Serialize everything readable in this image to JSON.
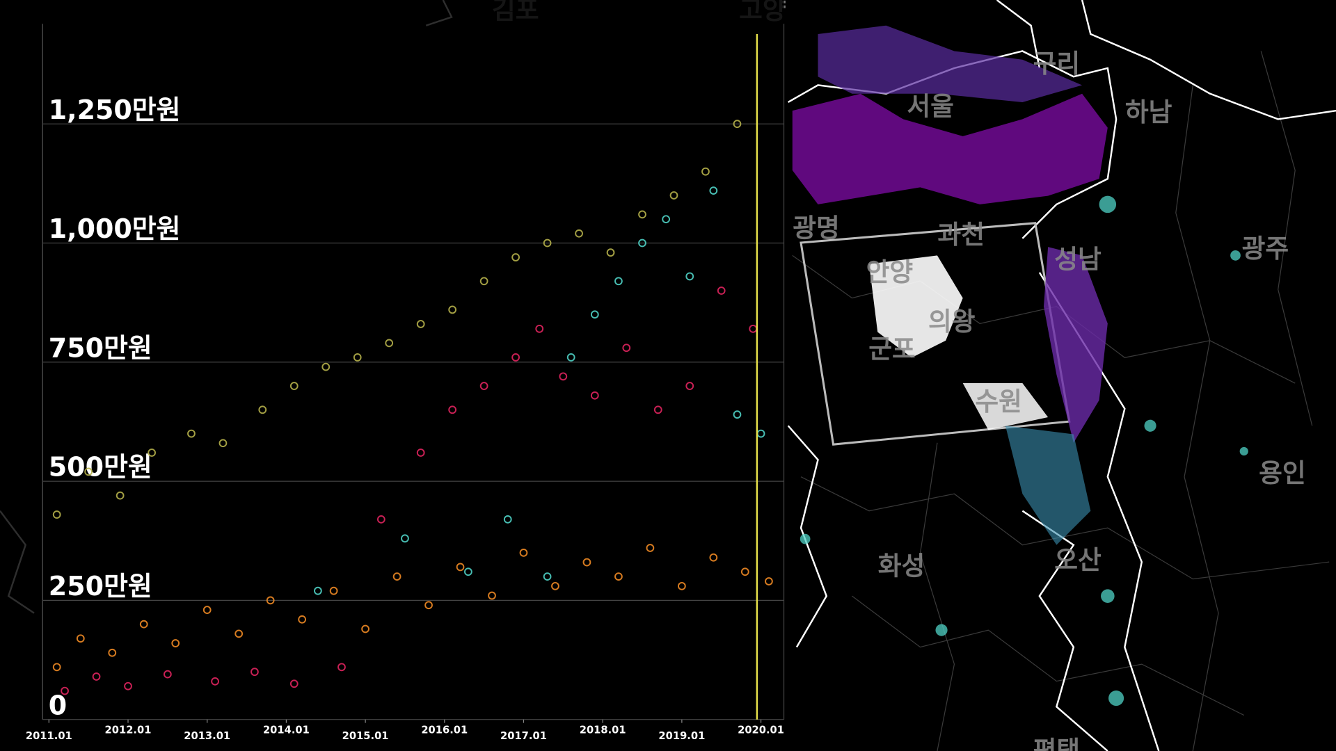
{
  "chart_data": {
    "type": "scatter",
    "xlim": [
      2010.92,
      2020.29
    ],
    "ylim": [
      0,
      1460
    ],
    "xticks": [
      {
        "value": 2011,
        "label": "2011.01"
      },
      {
        "value": 2012,
        "label": "2012.01"
      },
      {
        "value": 2013,
        "label": "2013.01"
      },
      {
        "value": 2014,
        "label": "2014.01"
      },
      {
        "value": 2015,
        "label": "2015.01"
      },
      {
        "value": 2016,
        "label": "2016.01"
      },
      {
        "value": 2017,
        "label": "2017.01"
      },
      {
        "value": 2018,
        "label": "2018.01"
      },
      {
        "value": 2019,
        "label": "2019.01"
      },
      {
        "value": 2020,
        "label": "2020.01"
      }
    ],
    "yticks": [
      0,
      {
        "value": 250,
        "label": "250만원"
      },
      {
        "value": 500,
        "label": "500만원"
      },
      {
        "value": 750,
        "label": "750만원"
      },
      {
        "value": 1000,
        "label": "1,000만원"
      },
      {
        "value": 1250,
        "label": "1,250만원"
      }
    ],
    "grid": true,
    "highlight_x": 2019.95,
    "highlight_color": "#e6e04a",
    "series": [
      {
        "color": "#f08a24",
        "x": [
          2011.1,
          2011.4,
          2011.8,
          2012.2,
          2012.6,
          2013.0,
          2013.4,
          2013.8,
          2014.2,
          2014.6,
          2015.0,
          2015.4,
          2015.8,
          2016.2,
          2016.6,
          2017.0,
          2017.4,
          2017.8,
          2018.2,
          2018.6,
          2019.0,
          2019.4,
          2019.8,
          2020.1
        ],
        "y": [
          110,
          170,
          140,
          200,
          160,
          230,
          180,
          250,
          210,
          270,
          190,
          300,
          240,
          320,
          260,
          350,
          280,
          330,
          300,
          360,
          280,
          340,
          310,
          290
        ]
      },
      {
        "color": "#e0245e",
        "x": [
          2011.2,
          2011.6,
          2012.0,
          2012.5,
          2013.1,
          2013.6,
          2014.1,
          2014.7,
          2015.2,
          2015.7,
          2016.1,
          2016.5,
          2016.9,
          2017.2,
          2017.5,
          2017.9,
          2018.3,
          2018.7,
          2019.1,
          2019.5,
          2019.9
        ],
        "y": [
          60,
          90,
          70,
          95,
          80,
          100,
          75,
          110,
          420,
          560,
          650,
          700,
          760,
          820,
          720,
          680,
          780,
          650,
          700,
          900,
          820
        ]
      },
      {
        "color": "#b5b04a",
        "x": [
          2011.1,
          2011.5,
          2011.9,
          2012.3,
          2012.8,
          2013.2,
          2013.7,
          2014.1,
          2014.5,
          2014.9,
          2015.3,
          2015.7,
          2016.1,
          2016.5,
          2016.9,
          2017.3,
          2017.7,
          2018.1,
          2018.5,
          2018.9,
          2019.3,
          2019.7
        ],
        "y": [
          430,
          520,
          470,
          560,
          600,
          580,
          650,
          700,
          740,
          760,
          790,
          830,
          860,
          920,
          970,
          1000,
          1020,
          980,
          1060,
          1100,
          1150,
          1250
        ]
      },
      {
        "color": "#4fd1c5",
        "x": [
          2014.4,
          2015.5,
          2016.3,
          2016.8,
          2017.3,
          2017.6,
          2017.9,
          2018.2,
          2018.5,
          2018.8,
          2019.1,
          2019.4,
          2019.7,
          2020.0
        ],
        "y": [
          270,
          380,
          310,
          420,
          300,
          760,
          850,
          920,
          1000,
          1050,
          930,
          1110,
          640,
          600
        ]
      }
    ]
  },
  "map": {
    "labels": [
      "김포",
      "고양",
      "서울",
      "구리",
      "하남",
      "광명",
      "과천",
      "성남",
      "광주",
      "안양",
      "의왕",
      "군포",
      "수원",
      "용인",
      "화성",
      "오산",
      "평택"
    ]
  }
}
